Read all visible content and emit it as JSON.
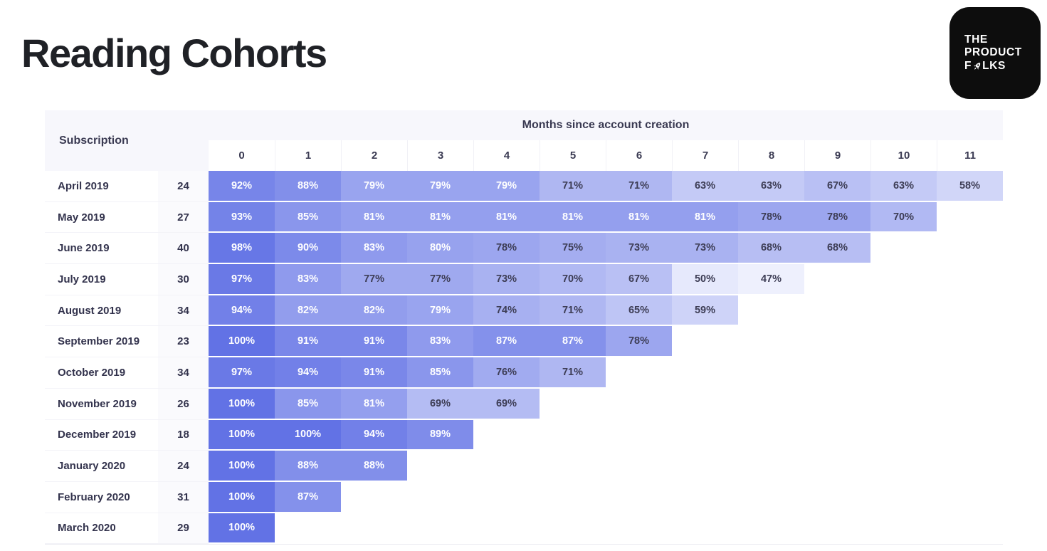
{
  "page": {
    "title": "Reading Cohorts",
    "background_color": "#ffffff",
    "title_color": "#1f2126"
  },
  "logo": {
    "alt_name": "the-product-folks-logo",
    "line1": "THE",
    "line2": "PRODUCT",
    "line3_before_icon": "F",
    "line3_after_icon": "LKS",
    "icon": "rocket-icon",
    "background_color": "#0d0d0d",
    "text_color": "#ffffff"
  },
  "table": {
    "corner_header": "Subscription",
    "group_header": "Months since account creation",
    "header_background": "#f7f7fc",
    "header_text_color": "#3a3a52"
  },
  "chart_data": {
    "type": "heatmap",
    "title": "Reading Cohorts",
    "row_header_label": "Subscription",
    "column_group_label": "Months since account creation",
    "columns": [
      0,
      1,
      2,
      3,
      4,
      5,
      6,
      7,
      8,
      9,
      10,
      11
    ],
    "value_unit": "%",
    "rows": [
      {
        "cohort": "April 2019",
        "size": 24,
        "values": [
          92,
          88,
          79,
          79,
          79,
          71,
          71,
          63,
          63,
          67,
          63,
          58
        ]
      },
      {
        "cohort": "May 2019",
        "size": 27,
        "values": [
          93,
          85,
          81,
          81,
          81,
          81,
          81,
          81,
          78,
          78,
          70
        ]
      },
      {
        "cohort": "June 2019",
        "size": 40,
        "values": [
          98,
          90,
          83,
          80,
          78,
          75,
          73,
          73,
          68,
          68
        ]
      },
      {
        "cohort": "July 2019",
        "size": 30,
        "values": [
          97,
          83,
          77,
          77,
          73,
          70,
          67,
          50,
          47
        ]
      },
      {
        "cohort": "August 2019",
        "size": 34,
        "values": [
          94,
          82,
          82,
          79,
          74,
          71,
          65,
          59
        ]
      },
      {
        "cohort": "September 2019",
        "size": 23,
        "values": [
          100,
          91,
          91,
          83,
          87,
          87,
          78
        ]
      },
      {
        "cohort": "October 2019",
        "size": 34,
        "values": [
          97,
          94,
          91,
          85,
          76,
          71
        ]
      },
      {
        "cohort": "November 2019",
        "size": 26,
        "values": [
          100,
          85,
          81,
          69,
          69
        ]
      },
      {
        "cohort": "December 2019",
        "size": 18,
        "values": [
          100,
          100,
          94,
          89
        ]
      },
      {
        "cohort": "January 2020",
        "size": 24,
        "values": [
          100,
          88,
          88
        ]
      },
      {
        "cohort": "February 2020",
        "size": 31,
        "values": [
          100,
          87
        ]
      },
      {
        "cohort": "March 2020",
        "size": 29,
        "values": [
          100
        ]
      }
    ],
    "color_scale": {
      "min_value": 47,
      "max_value": 100,
      "min_color": "#eef0fd",
      "max_color": "#6272e5"
    },
    "cell_text": {
      "light_color": "#ffffff",
      "dark_color": "#3d3d55",
      "light_text_min_value": 79
    }
  }
}
